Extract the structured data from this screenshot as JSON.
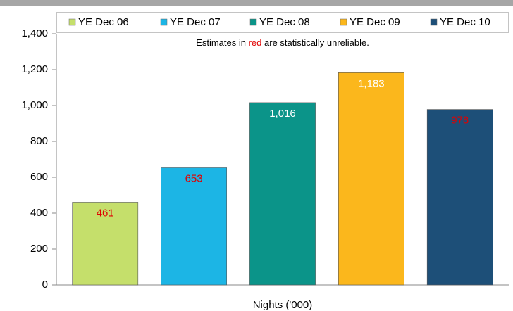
{
  "chart_data": {
    "type": "bar",
    "categories": [
      "Nights ('000)"
    ],
    "series": [
      {
        "name": "YE Dec 06",
        "color": "#c5df6b",
        "label_color": "#e00000",
        "values": [
          461
        ]
      },
      {
        "name": "YE Dec 07",
        "color": "#1cb5e5",
        "label_color": "#e00000",
        "values": [
          653
        ]
      },
      {
        "name": "YE Dec 08",
        "color": "#0b9489",
        "label_color": "#ffffff",
        "values": [
          1016
        ],
        "value_labels": [
          "1,016"
        ]
      },
      {
        "name": "YE Dec 09",
        "color": "#fbb71c",
        "label_color": "#ffffff",
        "values": [
          1183
        ],
        "value_labels": [
          "1,183"
        ]
      },
      {
        "name": "YE Dec 10",
        "color": "#1d4f78",
        "label_color": "#e00000",
        "values": [
          978
        ]
      }
    ],
    "annotation": {
      "parts": [
        "Estimates in ",
        "red",
        " are statistically unreliable."
      ],
      "colors": [
        "#000000",
        "#e00000",
        "#000000"
      ]
    },
    "ylim": [
      0,
      1400
    ],
    "yticks": [
      0,
      200,
      400,
      600,
      800,
      {
        "value": 1000,
        "label": "1,000"
      },
      {
        "value": 1200,
        "label": "1,200"
      },
      {
        "value": 1400,
        "label": "1,400"
      }
    ],
    "legend": "top"
  }
}
